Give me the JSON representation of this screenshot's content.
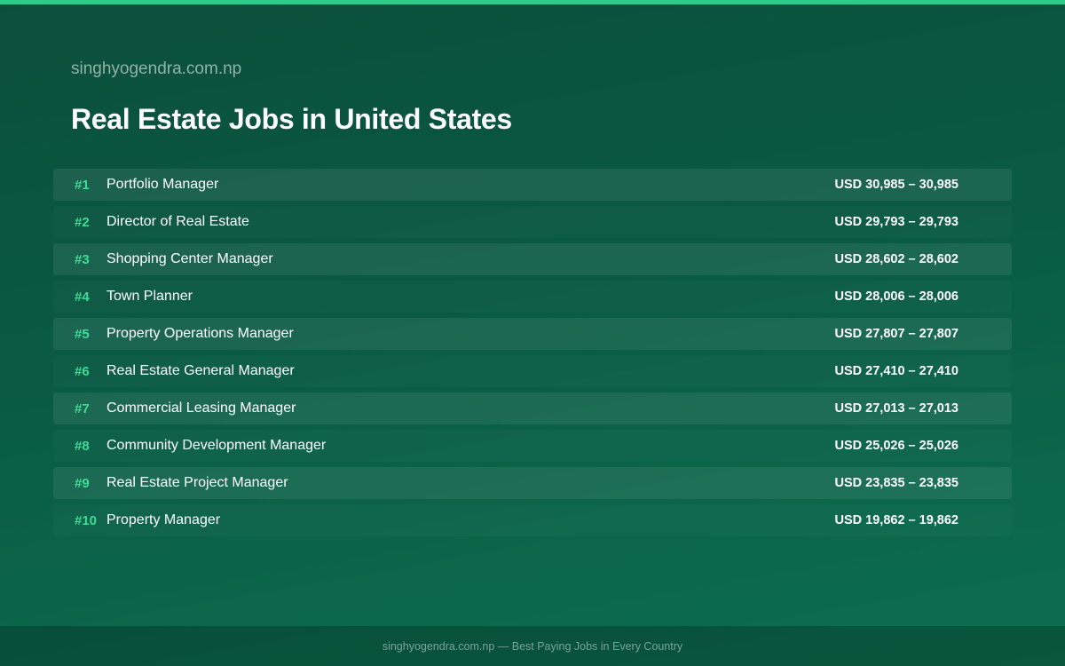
{
  "site_name": "singhyogendra.com.np",
  "title": "Real Estate Jobs in United States",
  "jobs": [
    {
      "rank": "#1",
      "title": "Portfolio Manager",
      "salary": "USD 30,985 – 30,985"
    },
    {
      "rank": "#2",
      "title": "Director of Real Estate",
      "salary": "USD 29,793 – 29,793"
    },
    {
      "rank": "#3",
      "title": "Shopping Center Manager",
      "salary": "USD 28,602 – 28,602"
    },
    {
      "rank": "#4",
      "title": "Town Planner",
      "salary": "USD 28,006 – 28,006"
    },
    {
      "rank": "#5",
      "title": "Property Operations Manager",
      "salary": "USD 27,807 – 27,807"
    },
    {
      "rank": "#6",
      "title": "Real Estate General Manager",
      "salary": "USD 27,410 – 27,410"
    },
    {
      "rank": "#7",
      "title": "Commercial Leasing Manager",
      "salary": "USD 27,013 – 27,013"
    },
    {
      "rank": "#8",
      "title": "Community Development Manager",
      "salary": "USD 25,026 – 25,026"
    },
    {
      "rank": "#9",
      "title": "Real Estate Project Manager",
      "salary": "USD 23,835 – 23,835"
    },
    {
      "rank": "#10",
      "title": "Property Manager",
      "salary": "USD 19,862 – 19,862"
    }
  ],
  "footer": "singhyogendra.com.np — Best Paying Jobs in Every Country",
  "colors": {
    "accent": "#3ddc97",
    "top_bar": "#2ecc8a",
    "background": "#0a5a43"
  }
}
